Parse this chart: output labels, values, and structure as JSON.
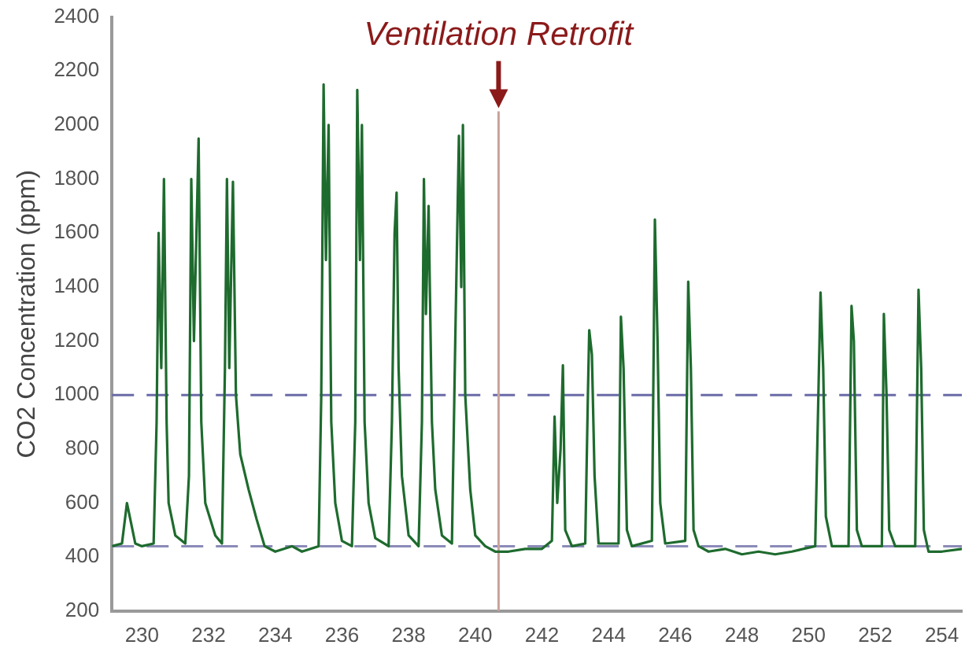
{
  "chart_data": {
    "type": "line",
    "ylabel": "CO2 Concentration (ppm)",
    "grid": false,
    "legend": false,
    "marker": "none",
    "line_style": "solid",
    "xlim": [
      229.1,
      254.6
    ],
    "xticks": [
      230,
      232,
      234,
      236,
      238,
      240,
      242,
      244,
      246,
      248,
      250,
      252,
      254
    ],
    "ylim": [
      200,
      2400
    ],
    "yticks": [
      200,
      400,
      600,
      800,
      1000,
      1200,
      1400,
      1600,
      1800,
      2000,
      2200,
      2400
    ],
    "ref_lines": [
      {
        "axis": "y",
        "value": 1000,
        "color": "#6a6aa8",
        "line_style": "dashed"
      },
      {
        "axis": "y",
        "value": 440,
        "color": "#8a8ab8",
        "line_style": "dashed"
      },
      {
        "axis": "x",
        "value": 240.7,
        "label": "Ventilation Retrofit",
        "color": "#c9a39a",
        "line_style": "solid"
      }
    ],
    "series": [
      {
        "color": "#1e6b2e",
        "x": [
          229.1,
          229.4,
          229.55,
          229.65,
          229.8,
          230.0,
          230.35,
          230.44,
          230.5,
          230.58,
          230.66,
          230.74,
          230.8,
          231.0,
          231.3,
          231.41,
          231.48,
          231.56,
          231.7,
          231.78,
          231.9,
          232.2,
          232.4,
          232.49,
          232.55,
          232.62,
          232.73,
          232.82,
          232.95,
          233.2,
          233.44,
          233.68,
          234.0,
          234.5,
          234.8,
          235.3,
          235.38,
          235.45,
          235.52,
          235.6,
          235.68,
          235.8,
          236.0,
          236.3,
          236.4,
          236.46,
          236.54,
          236.6,
          236.68,
          236.8,
          237.0,
          237.4,
          237.5,
          237.58,
          237.64,
          237.7,
          237.8,
          238.0,
          238.3,
          238.4,
          238.46,
          238.52,
          238.6,
          238.7,
          238.8,
          239.0,
          239.3,
          239.4,
          239.51,
          239.58,
          239.63,
          239.7,
          239.85,
          240.0,
          240.3,
          240.6,
          241.0,
          241.5,
          242.0,
          242.3,
          242.38,
          242.46,
          242.56,
          242.63,
          242.7,
          242.9,
          243.3,
          243.38,
          243.42,
          243.5,
          243.58,
          243.7,
          244.3,
          244.37,
          244.45,
          244.55,
          244.7,
          245.3,
          245.39,
          245.47,
          245.55,
          245.7,
          246.3,
          246.39,
          246.47,
          246.55,
          246.7,
          247.0,
          247.5,
          248.0,
          248.5,
          249.0,
          249.5,
          250.2,
          250.36,
          250.44,
          250.52,
          250.7,
          251.2,
          251.29,
          251.36,
          251.45,
          251.6,
          252.2,
          252.26,
          252.34,
          252.42,
          252.6,
          253.2,
          253.3,
          253.38,
          253.46,
          253.6,
          254.0,
          254.6
        ],
        "values": [
          440,
          450,
          600,
          540,
          450,
          440,
          450,
          900,
          1600,
          1100,
          1800,
          900,
          600,
          480,
          450,
          700,
          1800,
          1200,
          1950,
          900,
          600,
          480,
          450,
          1100,
          1800,
          1100,
          1790,
          1000,
          780,
          650,
          540,
          440,
          420,
          440,
          420,
          440,
          1000,
          2150,
          1500,
          2000,
          900,
          600,
          460,
          440,
          900,
          2130,
          1500,
          2000,
          900,
          600,
          470,
          440,
          900,
          1600,
          1750,
          1100,
          700,
          480,
          440,
          900,
          1800,
          1300,
          1700,
          900,
          650,
          480,
          450,
          1200,
          1960,
          1400,
          2000,
          1000,
          650,
          480,
          440,
          420,
          420,
          430,
          430,
          460,
          920,
          600,
          800,
          1110,
          500,
          440,
          450,
          1000,
          1240,
          1150,
          700,
          450,
          450,
          1290,
          1100,
          500,
          440,
          460,
          1650,
          1200,
          600,
          450,
          460,
          1420,
          1100,
          500,
          440,
          420,
          430,
          410,
          420,
          410,
          420,
          440,
          1380,
          1100,
          550,
          440,
          440,
          1330,
          1200,
          500,
          440,
          440,
          1300,
          1000,
          500,
          440,
          440,
          1390,
          1100,
          500,
          420,
          420,
          430
        ]
      }
    ]
  }
}
